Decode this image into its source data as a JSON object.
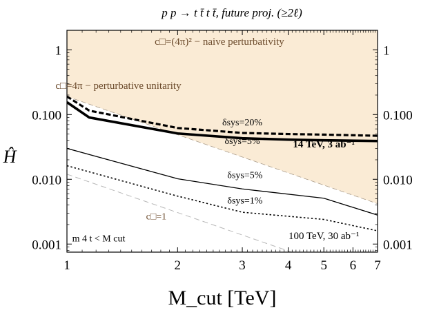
{
  "chart_data": {
    "type": "line",
    "title": "p p → t t̄ t t̄, future proj. (≥2ℓ)",
    "xlabel": "M_cut [TeV]",
    "ylabel": "Ĥ",
    "xscale": "log",
    "yscale": "log",
    "xlim": [
      1,
      7
    ],
    "ylim": [
      0.00075,
      2.0
    ],
    "xticks": [
      1,
      2,
      3,
      4,
      5,
      6,
      7
    ],
    "xtick_labels": [
      "1",
      "2",
      "3",
      "4",
      "5",
      "6",
      "7"
    ],
    "yticks": [
      0.001,
      0.01,
      0.1,
      1
    ],
    "ytick_labels": [
      "0.001",
      "0.010",
      "0.100",
      "1"
    ],
    "grid": false,
    "legend": "none",
    "regions": [
      {
        "name": "c□=(4π)² − naive perturbativity",
        "lower_boundary": {
          "x": [
            1,
            7
          ],
          "y": [
            2.5,
            0.048
          ]
        },
        "color": "#dcc29e"
      },
      {
        "name": "c□=4π − perturbative unitarity",
        "lower_boundary": {
          "x": [
            1,
            7
          ],
          "y": [
            0.19,
            0.0042
          ]
        },
        "color": "#faebd5"
      }
    ],
    "series": [
      {
        "x": [
          1,
          1.15,
          2,
          3,
          4,
          5,
          7
        ],
        "y": [
          0.19,
          0.115,
          0.062,
          0.052,
          0.05,
          0.049,
          0.047
        ],
        "style": "dashed-thick",
        "color": "#000000"
      },
      {
        "x": [
          1,
          1.15,
          2,
          3,
          4,
          5,
          7
        ],
        "y": [
          0.155,
          0.09,
          0.051,
          0.043,
          0.041,
          0.04,
          0.039
        ],
        "style": "solid-thick",
        "color": "#000000"
      },
      {
        "x": [
          1,
          2,
          3,
          5,
          7
        ],
        "y": [
          0.03,
          0.0102,
          0.0071,
          0.0051,
          0.0028
        ],
        "style": "solid-thin",
        "color": "#000000"
      },
      {
        "x": [
          1,
          2,
          3,
          5,
          7
        ],
        "y": [
          0.0162,
          0.0055,
          0.0031,
          0.0024,
          0.0016
        ],
        "style": "dotted",
        "color": "#000000"
      },
      {
        "x": [
          1,
          7
        ],
        "y": [
          0.012,
          0.00026
        ],
        "style": "dashed-thin",
        "color": "#b8b8b8"
      }
    ],
    "annotations": [
      {
        "text": "c□=(4π)² − naive perturbativity",
        "x": 2.6,
        "y": 1.2,
        "color": "#6b4a2b",
        "size": 15
      },
      {
        "text": "c□=4π − perturbative unitarity",
        "x": 1.38,
        "y": 0.25,
        "color": "#6b4a2b",
        "size": 15
      },
      {
        "text": "δsys=20%",
        "x": 3.0,
        "y": 0.068,
        "color": "#000000",
        "size": 14
      },
      {
        "text": "δsys=5%",
        "x": 3.0,
        "y": 0.035,
        "color": "#000000",
        "size": 14
      },
      {
        "text": "14 TeV, 3 ab⁻¹",
        "x": 5.0,
        "y": 0.031,
        "color": "#000000",
        "size": 15,
        "weight": "bold"
      },
      {
        "text": "δsys=5%",
        "x": 3.05,
        "y": 0.0105,
        "color": "#000000",
        "size": 14
      },
      {
        "text": "δsys=1%",
        "x": 3.05,
        "y": 0.0042,
        "color": "#000000",
        "size": 14
      },
      {
        "text": "c□=1",
        "x": 1.75,
        "y": 0.0024,
        "color": "#6b4a2b",
        "size": 14
      },
      {
        "text": "100 TeV, 30 ab⁻¹",
        "x": 5.0,
        "y": 0.0012,
        "color": "#000000",
        "size": 15
      },
      {
        "text": "m 4 t < M cut",
        "x": 1.22,
        "y": 0.0011,
        "color": "#000000",
        "size": 14
      }
    ]
  }
}
